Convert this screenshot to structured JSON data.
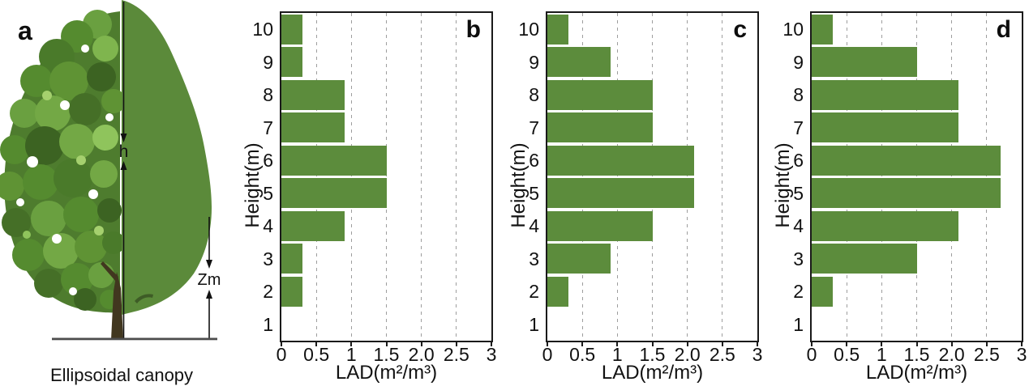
{
  "figure": {
    "panel_a": {
      "label": "a",
      "caption": "Ellipsoidal canopy",
      "height_annotation": "h",
      "zm_annotation": "Zm"
    }
  },
  "chart_axis": {
    "xlabel": "LAD(m²/m³)",
    "ylabel": "Height(m)",
    "xmax": 3,
    "x_tick_values": [
      0,
      0.5,
      1,
      1.5,
      2,
      2.5,
      3
    ],
    "x_tick_labels": [
      "0",
      "0.5",
      "1",
      "1.5",
      "2.0",
      "2.5",
      "3"
    ],
    "y_tick_labels": [
      "10",
      "9",
      "8",
      "7",
      "6",
      "5",
      "4",
      "3",
      "2",
      "1"
    ],
    "gridline_values": [
      0.5,
      1,
      1.5,
      2,
      2.5
    ],
    "grid_style": "dashed"
  },
  "chart_data": [
    {
      "type": "bar",
      "orientation": "horizontal",
      "panel_label": "b",
      "xlabel": "LAD(m²/m³)",
      "ylabel": "Height(m)",
      "xlim": [
        0,
        3
      ],
      "categories": [
        10,
        9,
        8,
        7,
        6,
        5,
        4,
        3,
        2,
        1
      ],
      "values": [
        0.3,
        0.3,
        0.9,
        0.9,
        1.5,
        1.5,
        0.9,
        0.3,
        0.3,
        0
      ]
    },
    {
      "type": "bar",
      "orientation": "horizontal",
      "panel_label": "c",
      "xlabel": "LAD(m²/m³)",
      "ylabel": "Height(m)",
      "xlim": [
        0,
        3
      ],
      "categories": [
        10,
        9,
        8,
        7,
        6,
        5,
        4,
        3,
        2,
        1
      ],
      "values": [
        0.3,
        0.9,
        1.5,
        1.5,
        2.1,
        2.1,
        1.5,
        0.9,
        0.3,
        0
      ]
    },
    {
      "type": "bar",
      "orientation": "horizontal",
      "panel_label": "d",
      "xlabel": "LAD(m²/m³)",
      "ylabel": "Height(m)",
      "xlim": [
        0,
        3
      ],
      "categories": [
        10,
        9,
        8,
        7,
        6,
        5,
        4,
        3,
        2,
        1
      ],
      "values": [
        0.3,
        1.5,
        2.1,
        2.1,
        2.7,
        2.7,
        2.1,
        1.5,
        0.3,
        0
      ]
    }
  ],
  "colors": {
    "bar_green": "#5c8c3c",
    "canopy_green": "#5b8a3a",
    "grid_gray": "#9e9e9e",
    "axis_black": "#1a1a1a",
    "ground_gray": "#4d4d4d",
    "annotation_black": "#111111"
  }
}
